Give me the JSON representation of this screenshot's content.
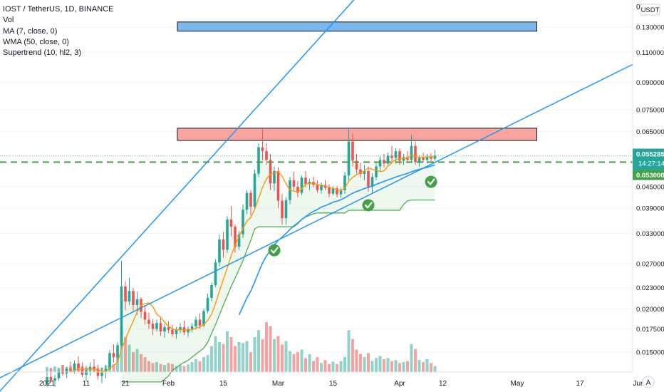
{
  "legend": {
    "title": "IOST / TetherUS, 1D, BINANCE",
    "vol": "Vol",
    "ma": "MA (7, close, 0)",
    "wma": "WMA (50, close, 0)",
    "supertrend": "Supertrend (10, hl2, 3)"
  },
  "price_axis": {
    "currency": "USDT",
    "top_label": "0",
    "last_price": "0.055285",
    "countdown": "14:27:14",
    "level_price": "0.053000"
  },
  "colors": {
    "up": "#26a69a",
    "down": "#ef5350",
    "vol_up": "#8fd3cb",
    "vol_down": "#f5a3a1",
    "ma": "#ff9800",
    "wma": "#2196f3",
    "supertrend": "#4caf50",
    "trendline": "#2196f3",
    "support": "#43a047",
    "resistance_box": "#f8a5a0",
    "target_box": "#7ab8ee",
    "check": "#43a047"
  },
  "chart_data": {
    "type": "candlestick",
    "title": "IOST / TetherUS, 1D, BINANCE",
    "y_scale": "log",
    "y_ticks": [
      "0.130000",
      "0.110000",
      "0.090000",
      "0.075000",
      "0.065000",
      "0.055000",
      "0.045000",
      "0.039000",
      "0.033000",
      "0.027000",
      "0.023000",
      "0.020000",
      "0.017500",
      "0.015000"
    ],
    "x_ticks": [
      "2021",
      "11",
      "21",
      "Feb",
      "15",
      "Mar",
      "15",
      "Apr",
      "12",
      "May",
      "17",
      "Jun"
    ],
    "start_date": "2021-01-01",
    "end_date": "2021-04-12",
    "support_level": 0.053,
    "resistance_zone": [
      0.0612,
      0.0664
    ],
    "target_zone": [
      0.1265,
      0.1345
    ],
    "target_zone_end": "2021-05-06",
    "ohlc": [
      [
        0.0121,
        0.0131,
        0.0119,
        0.0127
      ],
      [
        0.0127,
        0.0135,
        0.0123,
        0.0124
      ],
      [
        0.0124,
        0.0129,
        0.0119,
        0.0126
      ],
      [
        0.0126,
        0.0134,
        0.0124,
        0.0132
      ],
      [
        0.0132,
        0.0138,
        0.0128,
        0.013
      ],
      [
        0.013,
        0.0136,
        0.0126,
        0.0134
      ],
      [
        0.0134,
        0.0141,
        0.0131,
        0.0133
      ],
      [
        0.0133,
        0.0142,
        0.013,
        0.0139
      ],
      [
        0.0139,
        0.0146,
        0.0132,
        0.0135
      ],
      [
        0.0135,
        0.014,
        0.0127,
        0.0129
      ],
      [
        0.0129,
        0.0137,
        0.0124,
        0.0133
      ],
      [
        0.0133,
        0.014,
        0.0128,
        0.0136
      ],
      [
        0.0136,
        0.0143,
        0.0131,
        0.0134
      ],
      [
        0.0134,
        0.0138,
        0.0125,
        0.0128
      ],
      [
        0.0128,
        0.0135,
        0.0122,
        0.0131
      ],
      [
        0.0131,
        0.0138,
        0.0126,
        0.0134
      ],
      [
        0.0134,
        0.0152,
        0.0133,
        0.0149
      ],
      [
        0.0149,
        0.0158,
        0.014,
        0.0145
      ],
      [
        0.0145,
        0.016,
        0.0142,
        0.0157
      ],
      [
        0.0157,
        0.0275,
        0.0152,
        0.0232
      ],
      [
        0.0232,
        0.024,
        0.0198,
        0.021
      ],
      [
        0.021,
        0.0246,
        0.0205,
        0.0225
      ],
      [
        0.0225,
        0.023,
        0.0195,
        0.0205
      ],
      [
        0.0205,
        0.0224,
        0.0192,
        0.0213
      ],
      [
        0.0213,
        0.0216,
        0.0188,
        0.0196
      ],
      [
        0.0196,
        0.0205,
        0.018,
        0.0186
      ],
      [
        0.0186,
        0.0195,
        0.0175,
        0.0181
      ],
      [
        0.0181,
        0.0187,
        0.0168,
        0.0175
      ],
      [
        0.0175,
        0.0186,
        0.0172,
        0.0182
      ],
      [
        0.0182,
        0.0188,
        0.0167,
        0.0172
      ],
      [
        0.0172,
        0.0181,
        0.0165,
        0.0177
      ],
      [
        0.0177,
        0.0184,
        0.017,
        0.0174
      ],
      [
        0.0174,
        0.018,
        0.0166,
        0.0169
      ],
      [
        0.0169,
        0.0177,
        0.0164,
        0.0174
      ],
      [
        0.0174,
        0.0182,
        0.017,
        0.0177
      ],
      [
        0.0177,
        0.0185,
        0.0168,
        0.0171
      ],
      [
        0.0171,
        0.0178,
        0.0166,
        0.0175
      ],
      [
        0.0175,
        0.0182,
        0.0171,
        0.0178
      ],
      [
        0.0178,
        0.019,
        0.0174,
        0.0186
      ],
      [
        0.0186,
        0.0194,
        0.0175,
        0.0179
      ],
      [
        0.0179,
        0.02,
        0.0177,
        0.0197
      ],
      [
        0.0197,
        0.0221,
        0.0194,
        0.0215
      ],
      [
        0.0215,
        0.0238,
        0.021,
        0.0234
      ],
      [
        0.0234,
        0.0278,
        0.0231,
        0.0272
      ],
      [
        0.0272,
        0.0328,
        0.0265,
        0.0317
      ],
      [
        0.0317,
        0.0334,
        0.0281,
        0.0296
      ],
      [
        0.0296,
        0.037,
        0.029,
        0.0362
      ],
      [
        0.0362,
        0.0396,
        0.0324,
        0.0345
      ],
      [
        0.0345,
        0.035,
        0.029,
        0.0302
      ],
      [
        0.0302,
        0.0335,
        0.0295,
        0.0328
      ],
      [
        0.0328,
        0.04,
        0.032,
        0.0386
      ],
      [
        0.0386,
        0.044,
        0.0375,
        0.0432
      ],
      [
        0.0432,
        0.044,
        0.0372,
        0.0394
      ],
      [
        0.0394,
        0.0504,
        0.0385,
        0.0491
      ],
      [
        0.0491,
        0.06,
        0.048,
        0.0585
      ],
      [
        0.0585,
        0.0663,
        0.0536,
        0.057
      ],
      [
        0.057,
        0.0602,
        0.052,
        0.0538
      ],
      [
        0.0538,
        0.056,
        0.044,
        0.046
      ],
      [
        0.046,
        0.0515,
        0.0438,
        0.05
      ],
      [
        0.05,
        0.0512,
        0.039,
        0.041
      ],
      [
        0.041,
        0.043,
        0.035,
        0.0365
      ],
      [
        0.0365,
        0.042,
        0.035,
        0.0412
      ],
      [
        0.0412,
        0.048,
        0.04,
        0.047
      ],
      [
        0.047,
        0.0497,
        0.044,
        0.045
      ],
      [
        0.045,
        0.0468,
        0.042,
        0.0432
      ],
      [
        0.0432,
        0.0485,
        0.0425,
        0.0478
      ],
      [
        0.0478,
        0.05,
        0.0448,
        0.0458
      ],
      [
        0.0458,
        0.0475,
        0.044,
        0.0465
      ],
      [
        0.0465,
        0.0482,
        0.0448,
        0.0456
      ],
      [
        0.0456,
        0.047,
        0.0432,
        0.044
      ],
      [
        0.044,
        0.0463,
        0.043,
        0.0455
      ],
      [
        0.0455,
        0.047,
        0.044,
        0.0447
      ],
      [
        0.0447,
        0.0458,
        0.042,
        0.043
      ],
      [
        0.043,
        0.0452,
        0.0425,
        0.0445
      ],
      [
        0.0445,
        0.0452,
        0.042,
        0.0428
      ],
      [
        0.0428,
        0.0447,
        0.0418,
        0.044
      ],
      [
        0.044,
        0.0495,
        0.043,
        0.0485
      ],
      [
        0.0485,
        0.066,
        0.047,
        0.0608
      ],
      [
        0.0608,
        0.064,
        0.0515,
        0.0535
      ],
      [
        0.0535,
        0.056,
        0.049,
        0.0505
      ],
      [
        0.0505,
        0.0528,
        0.0478,
        0.049
      ],
      [
        0.049,
        0.052,
        0.047,
        0.05
      ],
      [
        0.05,
        0.0515,
        0.0435,
        0.045
      ],
      [
        0.045,
        0.0492,
        0.0432,
        0.048
      ],
      [
        0.048,
        0.053,
        0.047,
        0.0515
      ],
      [
        0.0515,
        0.055,
        0.05,
        0.0538
      ],
      [
        0.0538,
        0.056,
        0.051,
        0.0525
      ],
      [
        0.0525,
        0.0565,
        0.0515,
        0.0553
      ],
      [
        0.0553,
        0.059,
        0.053,
        0.0545
      ],
      [
        0.0545,
        0.0582,
        0.0525,
        0.057
      ],
      [
        0.057,
        0.058,
        0.052,
        0.0535
      ],
      [
        0.0535,
        0.056,
        0.052,
        0.0548
      ],
      [
        0.0548,
        0.057,
        0.053,
        0.0538
      ],
      [
        0.0538,
        0.0635,
        0.0532,
        0.059
      ],
      [
        0.059,
        0.0608,
        0.052,
        0.053
      ],
      [
        0.053,
        0.0555,
        0.0515,
        0.0545
      ],
      [
        0.0545,
        0.0565,
        0.053,
        0.0538
      ],
      [
        0.0538,
        0.056,
        0.0525,
        0.055
      ],
      [
        0.055,
        0.0562,
        0.053,
        0.0542
      ],
      [
        0.0542,
        0.0575,
        0.0535,
        0.0553
      ]
    ],
    "volume": [
      0.1,
      0.08,
      0.11,
      0.09,
      0.14,
      0.1,
      0.12,
      0.08,
      0.16,
      0.12,
      0.09,
      0.1,
      0.11,
      0.08,
      0.09,
      0.13,
      0.2,
      0.16,
      0.34,
      0.92,
      0.7,
      0.55,
      0.4,
      0.46,
      0.36,
      0.3,
      0.22,
      0.18,
      0.2,
      0.16,
      0.14,
      0.18,
      0.16,
      0.12,
      0.14,
      0.12,
      0.15,
      0.2,
      0.26,
      0.22,
      0.3,
      0.34,
      0.52,
      0.72,
      0.6,
      0.56,
      0.82,
      0.7,
      0.52,
      0.6,
      0.58,
      0.62,
      0.4,
      0.7,
      0.84,
      0.66,
      1.0,
      0.92,
      0.66,
      0.72,
      0.55,
      0.62,
      0.42,
      0.36,
      0.4,
      0.45,
      0.28,
      0.36,
      0.22,
      0.3,
      0.18,
      0.24,
      0.16,
      0.21,
      0.16,
      0.22,
      0.3,
      0.84,
      0.66,
      0.45,
      0.36,
      0.3,
      0.38,
      0.22,
      0.28,
      0.32,
      0.26,
      0.28,
      0.22,
      0.24,
      0.18,
      0.2,
      0.22,
      0.56,
      0.46,
      0.24,
      0.2,
      0.26,
      0.18,
      0.12
    ],
    "ma7": [
      null,
      null,
      null,
      null,
      null,
      null,
      0.0131,
      0.0133,
      0.0134,
      0.0134,
      0.0134,
      0.0134,
      0.0134,
      0.0133,
      0.0132,
      0.0132,
      0.0135,
      0.0137,
      0.014,
      0.0153,
      0.0163,
      0.0174,
      0.0184,
      0.0196,
      0.0205,
      0.0207,
      0.0208,
      0.0203,
      0.0193,
      0.0189,
      0.0183,
      0.0178,
      0.0175,
      0.0174,
      0.0174,
      0.0174,
      0.0174,
      0.0174,
      0.0176,
      0.0177,
      0.018,
      0.0185,
      0.0193,
      0.0207,
      0.0225,
      0.0243,
      0.0262,
      0.0285,
      0.0305,
      0.0324,
      0.0341,
      0.0358,
      0.0367,
      0.0387,
      0.0417,
      0.0448,
      0.0474,
      0.0489,
      0.0493,
      0.0497,
      0.0483,
      0.0459,
      0.044,
      0.0437,
      0.0435,
      0.0443,
      0.0458,
      0.046,
      0.0461,
      0.0456,
      0.0455,
      0.0452,
      0.0448,
      0.0445,
      0.0441,
      0.0439,
      0.0446,
      0.0467,
      0.0479,
      0.0487,
      0.0494,
      0.05,
      0.051,
      0.0505,
      0.0501,
      0.0498,
      0.05,
      0.0516,
      0.0528,
      0.0539,
      0.0541,
      0.0544,
      0.0543,
      0.0555,
      0.0551,
      0.0547,
      0.0547,
      0.0549,
      0.0549,
      0.0549
    ],
    "wma50": [
      null,
      null,
      null,
      null,
      null,
      null,
      null,
      null,
      null,
      null,
      null,
      null,
      null,
      null,
      null,
      null,
      null,
      null,
      null,
      null,
      null,
      null,
      null,
      null,
      null,
      null,
      null,
      null,
      null,
      null,
      null,
      null,
      null,
      null,
      null,
      null,
      null,
      null,
      null,
      null,
      null,
      null,
      null,
      null,
      null,
      null,
      null,
      null,
      null,
      0.0192,
      0.0203,
      0.0215,
      0.0225,
      0.0239,
      0.0255,
      0.0271,
      0.0284,
      0.0295,
      0.0306,
      0.0315,
      0.0322,
      0.033,
      0.0339,
      0.0347,
      0.0354,
      0.0362,
      0.0369,
      0.0376,
      0.0382,
      0.0387,
      0.0393,
      0.0397,
      0.0401,
      0.0406,
      0.0409,
      0.0413,
      0.0418,
      0.0425,
      0.0431,
      0.0436,
      0.044,
      0.0445,
      0.0448,
      0.0452,
      0.0457,
      0.0462,
      0.0466,
      0.0471,
      0.0475,
      0.048,
      0.0484,
      0.0488,
      0.0492,
      0.0497,
      0.0501,
      0.0505,
      0.0509,
      0.0512,
      0.0516,
      0.052
    ],
    "supertrend": [
      null,
      null,
      null,
      null,
      null,
      null,
      null,
      null,
      null,
      null,
      null,
      null,
      null,
      null,
      null,
      null,
      null,
      null,
      null,
      0.0123,
      0.0123,
      0.0123,
      0.0123,
      0.0123,
      0.0123,
      0.0123,
      0.0123,
      0.0123,
      0.0123,
      0.0123,
      0.0125,
      0.0128,
      0.0133,
      0.0135,
      0.0138,
      0.014,
      0.0142,
      0.0145,
      0.0148,
      0.0151,
      0.0154,
      0.016,
      0.017,
      0.018,
      0.0192,
      0.0205,
      0.0218,
      0.0232,
      0.0245,
      0.026,
      0.0275,
      0.0295,
      0.0315,
      0.034,
      0.0345,
      0.0345,
      0.0345,
      0.0345,
      0.0345,
      0.0345,
      0.0345,
      0.0345,
      0.0345,
      0.0345,
      0.0352,
      0.0362,
      0.0368,
      0.0372,
      0.0376,
      0.0378,
      0.0378,
      0.0378,
      0.0378,
      0.0378,
      0.0378,
      0.0378,
      0.0378,
      0.0385,
      0.0385,
      0.0385,
      0.0385,
      0.0385,
      0.0385,
      0.0385,
      0.0385,
      0.0385,
      0.0385,
      0.0385,
      0.0385,
      0.0385,
      0.0385,
      0.04,
      0.041,
      0.0412,
      0.0412,
      0.0412,
      0.0412,
      0.0412,
      0.0412,
      0.0412
    ],
    "trendlines": [
      {
        "p1": {
          "date": "2020-12-29",
          "price": 0.015
        },
        "p2": {
          "date": "2021-03-16",
          "price": 0.1375
        }
      },
      {
        "p1": {
          "date": "2020-12-29",
          "price": 0.0142
        },
        "p2": {
          "date": "2021-04-12",
          "price": 0.0543
        }
      }
    ],
    "support_checkmarks": [
      {
        "date": "2021-02-28",
        "price": 0.0295
      },
      {
        "date": "2021-03-24",
        "price": 0.0398
      },
      {
        "date": "2021-04-09",
        "price": 0.0465
      }
    ]
  }
}
